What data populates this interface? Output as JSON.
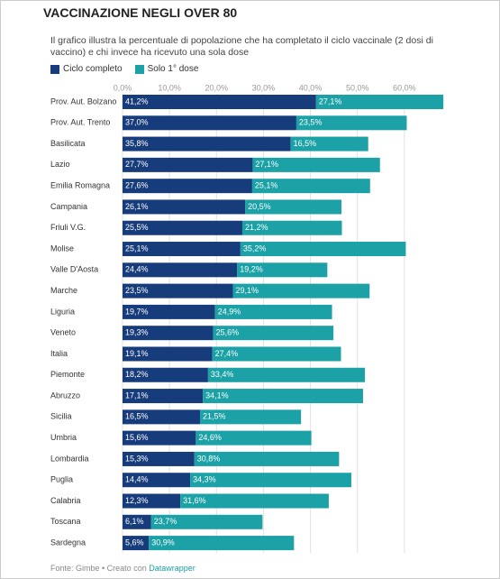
{
  "chart_data": {
    "type": "stacked-bar-horizontal",
    "title": "VACCINAZIONE NEGLI OVER 80",
    "subtitle": "Il grafico illustra la percentuale di popolazione che ha completato il ciclo vaccinale (2 dosi di vaccino) e chi invece ha ricevuto una sola dose",
    "categories": [
      "Prov. Aut. Bolzano",
      "Prov. Aut. Trento",
      "Basilicata",
      "Lazio",
      "Emilia Romagna",
      "Campania",
      "Friuli V.G.",
      "Molise",
      "Valle D'Aosta",
      "Marche",
      "Liguria",
      "Veneto",
      "Italia",
      "Piemonte",
      "Abruzzo",
      "Sicilia",
      "Umbria",
      "Lombardia",
      "Puglia",
      "Calabria",
      "Toscana",
      "Sardegna"
    ],
    "series": [
      {
        "name": "Ciclo completo",
        "color": "#173c7b",
        "values": [
          41.2,
          37.0,
          35.8,
          27.7,
          27.6,
          26.1,
          25.5,
          25.1,
          24.4,
          23.5,
          19.7,
          19.3,
          19.1,
          18.2,
          17.1,
          16.5,
          15.6,
          15.3,
          14.4,
          12.3,
          6.1,
          5.6
        ],
        "value_labels": [
          "41,2%",
          "37,0%",
          "35,8%",
          "27,7%",
          "27,6%",
          "26,1%",
          "25,5%",
          "25,1%",
          "24,4%",
          "23,5%",
          "19,7%",
          "19,3%",
          "19,1%",
          "18,2%",
          "17,1%",
          "16,5%",
          "15,6%",
          "15,3%",
          "14,4%",
          "12,3%",
          "6,1%",
          "5,6%"
        ]
      },
      {
        "name": "Solo 1° dose",
        "color": "#1ba1a6",
        "values": [
          27.1,
          23.5,
          16.5,
          27.1,
          25.1,
          20.5,
          21.2,
          35.2,
          19.2,
          29.1,
          24.9,
          25.6,
          27.4,
          33.4,
          34.1,
          21.5,
          24.6,
          30.8,
          34.3,
          31.6,
          23.7,
          30.9
        ],
        "value_labels": [
          "27,1%",
          "23,5%",
          "16,5%",
          "27,1%",
          "25,1%",
          "20,5%",
          "21,2%",
          "35,2%",
          "19,2%",
          "29,1%",
          "24,9%",
          "25,6%",
          "27,4%",
          "33,4%",
          "34,1%",
          "21,5%",
          "24,6%",
          "30,8%",
          "34,3%",
          "31,6%",
          "23,7%",
          "30,9%"
        ]
      }
    ],
    "xlim": [
      0,
      70
    ],
    "xticks": [
      {
        "value": 0,
        "label": "0,0%"
      },
      {
        "value": 10,
        "label": "10,0%"
      },
      {
        "value": 20,
        "label": "20,0%"
      },
      {
        "value": 30,
        "label": "30,0%"
      },
      {
        "value": 40,
        "label": "40,0%"
      },
      {
        "value": 50,
        "label": "50,0%"
      },
      {
        "value": 60,
        "label": "60,0%"
      }
    ],
    "grid": true,
    "source": "Fonte: Gimbe • Creato con",
    "credit": "Datawrapper"
  }
}
